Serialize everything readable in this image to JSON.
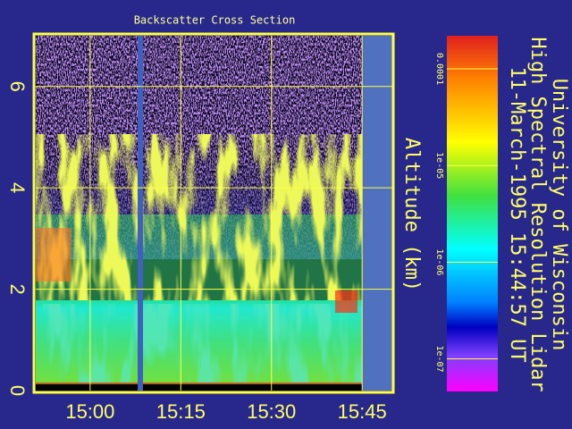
{
  "chart_data": {
    "type": "heatmap",
    "title": "Backscatter Cross Section",
    "ylabel": "Altitude (km)",
    "ylim": [
      0,
      7
    ],
    "yticks": [
      0,
      2,
      4,
      6
    ],
    "xlim": [
      891,
      950
    ],
    "xticks": [
      {
        "value": 900,
        "label": "15:00"
      },
      {
        "value": 915,
        "label": "15:15"
      },
      {
        "value": 930,
        "label": "15:30"
      },
      {
        "value": 945,
        "label": "15:45"
      }
    ],
    "grid": true,
    "colorbar": {
      "scale": "log",
      "lim": [
        4.6e-08,
        0.00022
      ],
      "ticks": [
        0.0001,
        {
          "value": 1e-05,
          "label": "1e-05"
        },
        {
          "value": 1e-06,
          "label": "1e-06"
        },
        {
          "value": 1e-07,
          "label": "1e-07"
        }
      ]
    },
    "info_lines": [
      "University of Wisconsin",
      "High Spectral Resolution Lidar",
      "11-March-1995 15:44:57 UT"
    ]
  }
}
